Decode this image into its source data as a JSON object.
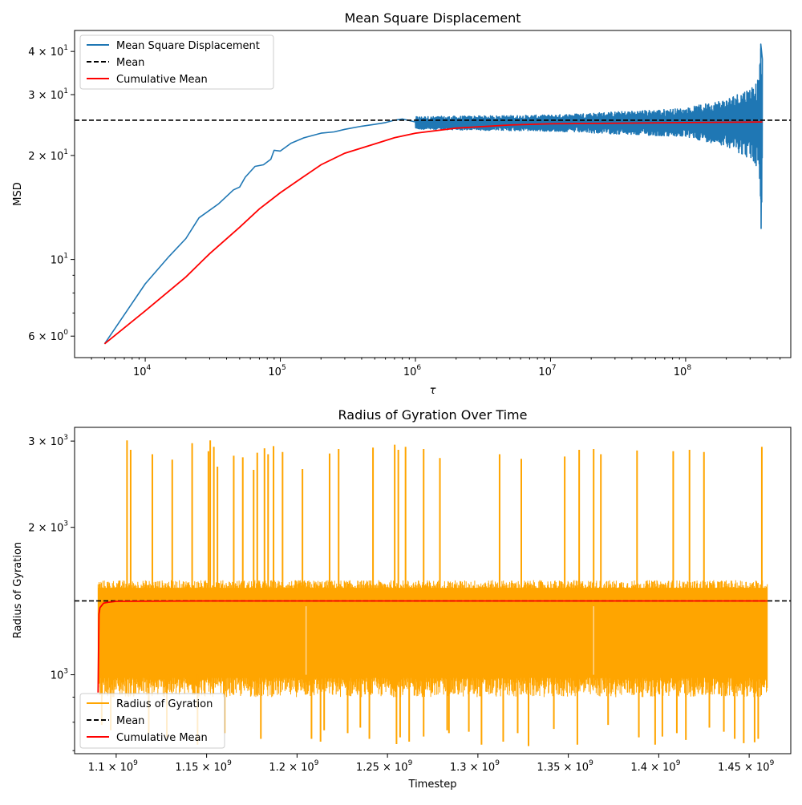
{
  "chart_data": [
    {
      "type": "line",
      "title": "Mean Square Displacement",
      "xlabel": "τ",
      "ylabel": "MSD",
      "xscale": "log",
      "yscale": "log",
      "xlim": [
        3000,
        600000000
      ],
      "ylim": [
        5.2,
        46
      ],
      "grid": false,
      "legend_position": "top-left",
      "x_ticks": [
        {
          "value": 10000,
          "base": "10",
          "exp": "4"
        },
        {
          "value": 100000,
          "base": "10",
          "exp": "5"
        },
        {
          "value": 1000000,
          "base": "10",
          "exp": "6"
        },
        {
          "value": 10000000,
          "base": "10",
          "exp": "7"
        },
        {
          "value": 100000000,
          "base": "10",
          "exp": "8"
        }
      ],
      "y_ticks": [
        {
          "value": 6,
          "mant": "6 × 10",
          "exp": "0"
        },
        {
          "value": 10,
          "mant": "10",
          "exp": "1"
        },
        {
          "value": 20,
          "mant": "2 × 10",
          "exp": "1"
        },
        {
          "value": 30,
          "mant": "3 × 10",
          "exp": "1"
        },
        {
          "value": 40,
          "mant": "4 × 10",
          "exp": "1"
        }
      ],
      "series": [
        {
          "name": "Mean Square Displacement",
          "color": "#1f77b4",
          "x": [
            5000,
            10000,
            15000,
            20000,
            25000,
            35000,
            45000,
            50000,
            55000,
            65000,
            75000,
            85000,
            90000,
            100000,
            120000,
            150000,
            200000,
            250000,
            300000,
            400000,
            500000,
            600000,
            700000,
            800000,
            1000000,
            1500000,
            2000000,
            3000000,
            5000000,
            10000000,
            20000000,
            50000000,
            100000000,
            200000000,
            300000000,
            350000000
          ],
          "y": [
            5.7,
            8.5,
            10.2,
            11.5,
            13.2,
            14.5,
            15.9,
            16.2,
            17.3,
            18.6,
            18.8,
            19.5,
            20.7,
            20.6,
            21.7,
            22.5,
            23.2,
            23.4,
            23.8,
            24.3,
            24.6,
            24.9,
            25.3,
            25.5,
            25.0,
            24.6,
            24.5,
            24.7,
            24.8,
            24.8,
            24.8,
            24.8,
            24.8,
            24.8,
            24.8,
            24.8
          ],
          "noise_envelope": {
            "x": [
              1000000,
              10000000,
              100000000,
              200000000,
              300000000,
              350000000,
              360000000,
              370000000
            ],
            "upper": [
              25.9,
              26.2,
              27.4,
              29.2,
              31.5,
              33.5,
              42,
              38
            ],
            "lower": [
              23.8,
              23.5,
              22.6,
              21.3,
              19.5,
              18,
              12.3,
              15
            ]
          }
        },
        {
          "name": "Mean",
          "color": "#000000",
          "style": "dashed",
          "y_constant": 25.3
        },
        {
          "name": "Cumulative Mean",
          "color": "#ff0000",
          "x": [
            5000,
            10000,
            20000,
            30000,
            50000,
            70000,
            100000,
            150000,
            200000,
            300000,
            500000,
            700000,
            1000000,
            2000000,
            5000000,
            10000000,
            100000000,
            370000000
          ],
          "y": [
            5.7,
            7.1,
            8.9,
            10.4,
            12.4,
            14.0,
            15.6,
            17.4,
            18.8,
            20.3,
            21.6,
            22.5,
            23.2,
            24.0,
            24.5,
            24.7,
            24.9,
            25.0
          ]
        }
      ]
    },
    {
      "type": "line",
      "title": "Radius of Gyration Over Time",
      "xlabel": "Timestep",
      "ylabel": "Radius of Gyration",
      "xscale": "linear",
      "yscale": "log",
      "xlim": [
        1077000000,
        1473000000
      ],
      "ylim": [
        690,
        3200
      ],
      "grid": false,
      "legend_position": "bottom-left",
      "x_ticks": [
        {
          "value": 1100000000,
          "mant": "1.1 × 10",
          "exp": "9"
        },
        {
          "value": 1150000000,
          "mant": "1.15 × 10",
          "exp": "9"
        },
        {
          "value": 1200000000,
          "mant": "1.2 × 10",
          "exp": "9"
        },
        {
          "value": 1250000000,
          "mant": "1.25 × 10",
          "exp": "9"
        },
        {
          "value": 1300000000,
          "mant": "1.3 × 10",
          "exp": "9"
        },
        {
          "value": 1350000000,
          "mant": "1.35 × 10",
          "exp": "9"
        },
        {
          "value": 1400000000,
          "mant": "1.4 × 10",
          "exp": "9"
        },
        {
          "value": 1450000000,
          "mant": "1.45 × 10",
          "exp": "9"
        }
      ],
      "y_ticks": [
        {
          "value": 1000,
          "mant": "10",
          "exp": "3"
        },
        {
          "value": 2000,
          "mant": "2 × 10",
          "exp": "3"
        },
        {
          "value": 3000,
          "mant": "3 × 10",
          "exp": "3"
        }
      ],
      "series": [
        {
          "name": "Radius of Gyration",
          "color": "#ffa500",
          "x_range": [
            1090000000,
            1460000000
          ],
          "band": {
            "lower": 920,
            "upper": 1550
          },
          "spikes_up": [
            [
              1106000000,
              3010
            ],
            [
              1108000000,
              2880
            ],
            [
              1120000000,
              2820
            ],
            [
              1131000000,
              2750
            ],
            [
              1142000000,
              2970
            ],
            [
              1151000000,
              2860
            ],
            [
              1152000000,
              3010
            ],
            [
              1154000000,
              2920
            ],
            [
              1156000000,
              2660
            ],
            [
              1165000000,
              2800
            ],
            [
              1170000000,
              2780
            ],
            [
              1176000000,
              2620
            ],
            [
              1178000000,
              2840
            ],
            [
              1182000000,
              2900
            ],
            [
              1184000000,
              2820
            ],
            [
              1187000000,
              2930
            ],
            [
              1192000000,
              2850
            ],
            [
              1203000000,
              2630
            ],
            [
              1218000000,
              2830
            ],
            [
              1223000000,
              2890
            ],
            [
              1242000000,
              2910
            ],
            [
              1254000000,
              2950
            ],
            [
              1256000000,
              2880
            ],
            [
              1260000000,
              2920
            ],
            [
              1270000000,
              2890
            ],
            [
              1279000000,
              2770
            ],
            [
              1312000000,
              2820
            ],
            [
              1324000000,
              2760
            ],
            [
              1348000000,
              2790
            ],
            [
              1356000000,
              2880
            ],
            [
              1364000000,
              2890
            ],
            [
              1368000000,
              2820
            ],
            [
              1388000000,
              2870
            ],
            [
              1408000000,
              2860
            ],
            [
              1417000000,
              2880
            ],
            [
              1425000000,
              2850
            ],
            [
              1457000000,
              2920
            ]
          ],
          "spikes_down": [
            [
              1092000000,
              790
            ],
            [
              1097000000,
              770
            ],
            [
              1118000000,
              760
            ],
            [
              1128000000,
              745
            ],
            [
              1145000000,
              720
            ],
            [
              1160000000,
              760
            ],
            [
              1180000000,
              740
            ],
            [
              1208000000,
              740
            ],
            [
              1213000000,
              730
            ],
            [
              1215000000,
              770
            ],
            [
              1228000000,
              760
            ],
            [
              1235000000,
              780
            ],
            [
              1240000000,
              740
            ],
            [
              1255000000,
              722
            ],
            [
              1257000000,
              745
            ],
            [
              1262000000,
              730
            ],
            [
              1270000000,
              748
            ],
            [
              1283000000,
              770
            ],
            [
              1284000000,
              760
            ],
            [
              1295000000,
              765
            ],
            [
              1302000000,
              720
            ],
            [
              1314000000,
              730
            ],
            [
              1322000000,
              760
            ],
            [
              1328000000,
              715
            ],
            [
              1342000000,
              775
            ],
            [
              1355000000,
              720
            ],
            [
              1372000000,
              790
            ],
            [
              1389000000,
              745
            ],
            [
              1398000000,
              720
            ],
            [
              1402000000,
              748
            ],
            [
              1410000000,
              760
            ],
            [
              1415000000,
              736
            ],
            [
              1428000000,
              780
            ],
            [
              1436000000,
              765
            ],
            [
              1442000000,
              740
            ],
            [
              1447000000,
              725
            ],
            [
              1453000000,
              728
            ],
            [
              1455000000,
              740
            ]
          ]
        },
        {
          "name": "Mean",
          "color": "#000000",
          "style": "dashed",
          "y_constant": 1415
        },
        {
          "name": "Cumulative Mean",
          "color": "#ff0000",
          "x": [
            1090000000,
            1090500000,
            1091000000,
            1092000000,
            1093000000,
            1095000000,
            1100000000,
            1150000000,
            1250000000,
            1460000000
          ],
          "y": [
            920,
            1330,
            1370,
            1385,
            1400,
            1405,
            1412,
            1415,
            1415,
            1415
          ]
        }
      ]
    }
  ]
}
